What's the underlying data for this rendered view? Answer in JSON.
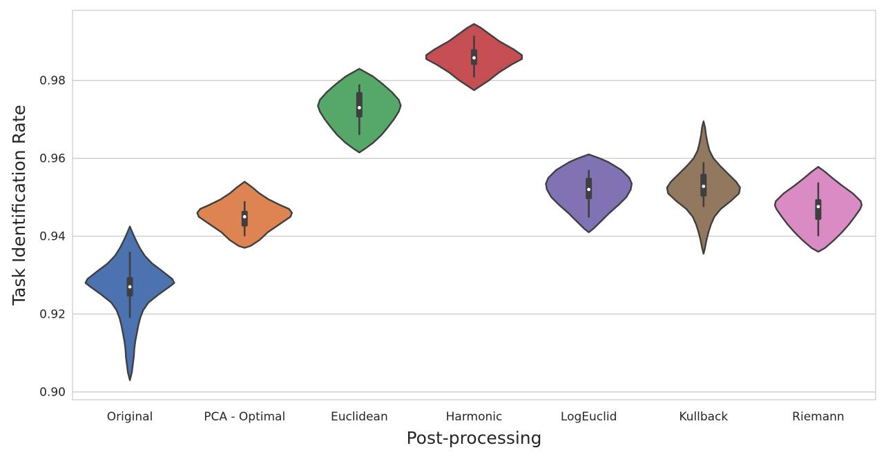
{
  "chart_data": {
    "type": "violin",
    "title": "",
    "xlabel": "Post-processing",
    "ylabel": "Task Identification Rate",
    "ylim": [
      0.898,
      0.998
    ],
    "yticks": [
      0.9,
      0.92,
      0.94,
      0.96,
      0.98
    ],
    "ytick_labels": [
      "0.90",
      "0.92",
      "0.94",
      "0.96",
      "0.98"
    ],
    "grid": true,
    "grid_axis": "y",
    "legend": "none",
    "categories": [
      "Original",
      "PCA - Optimal",
      "Euclidean",
      "Harmonic",
      "LogEuclid",
      "Kullback",
      "Riemann"
    ],
    "colors": [
      "#4c72b0",
      "#dd8452",
      "#55a868",
      "#c44e52",
      "#8172b3",
      "#937860",
      "#da8bc3"
    ],
    "series": [
      {
        "category": "Original",
        "min": 0.903,
        "max": 0.9425,
        "q1": 0.9245,
        "median": 0.927,
        "q3": 0.9295,
        "whisker_low": 0.919,
        "whisker_high": 0.936,
        "profile": [
          [
            0.903,
            0.0
          ],
          [
            0.905,
            0.04
          ],
          [
            0.907,
            0.06
          ],
          [
            0.909,
            0.08
          ],
          [
            0.911,
            0.09
          ],
          [
            0.913,
            0.11
          ],
          [
            0.915,
            0.14
          ],
          [
            0.917,
            0.17
          ],
          [
            0.919,
            0.21
          ],
          [
            0.921,
            0.27
          ],
          [
            0.923,
            0.38
          ],
          [
            0.925,
            0.58
          ],
          [
            0.927,
            0.8
          ],
          [
            0.928,
            0.9
          ],
          [
            0.929,
            0.86
          ],
          [
            0.931,
            0.66
          ],
          [
            0.933,
            0.45
          ],
          [
            0.935,
            0.3
          ],
          [
            0.937,
            0.2
          ],
          [
            0.939,
            0.12
          ],
          [
            0.941,
            0.05
          ],
          [
            0.9425,
            0.0
          ]
        ]
      },
      {
        "category": "PCA - Optimal",
        "min": 0.937,
        "max": 0.954,
        "q1": 0.9425,
        "median": 0.945,
        "q3": 0.9465,
        "whisker_low": 0.94,
        "whisker_high": 0.949,
        "profile": [
          [
            0.937,
            0.0
          ],
          [
            0.9375,
            0.12
          ],
          [
            0.939,
            0.3
          ],
          [
            0.941,
            0.47
          ],
          [
            0.943,
            0.7
          ],
          [
            0.945,
            0.93
          ],
          [
            0.946,
            0.96
          ],
          [
            0.947,
            0.9
          ],
          [
            0.948,
            0.72
          ],
          [
            0.9495,
            0.48
          ],
          [
            0.951,
            0.3
          ],
          [
            0.9525,
            0.16
          ],
          [
            0.954,
            0.0
          ]
        ]
      },
      {
        "category": "Euclidean",
        "min": 0.9615,
        "max": 0.983,
        "q1": 0.9705,
        "median": 0.973,
        "q3": 0.977,
        "whisker_low": 0.966,
        "whisker_high": 0.979,
        "profile": [
          [
            0.9615,
            0.0
          ],
          [
            0.9625,
            0.12
          ],
          [
            0.964,
            0.28
          ],
          [
            0.966,
            0.45
          ],
          [
            0.968,
            0.58
          ],
          [
            0.97,
            0.7
          ],
          [
            0.972,
            0.8
          ],
          [
            0.9735,
            0.84
          ],
          [
            0.975,
            0.8
          ],
          [
            0.977,
            0.66
          ],
          [
            0.979,
            0.48
          ],
          [
            0.981,
            0.28
          ],
          [
            0.982,
            0.14
          ],
          [
            0.983,
            0.0
          ]
        ]
      },
      {
        "category": "Harmonic",
        "min": 0.9775,
        "max": 0.9945,
        "q1": 0.984,
        "median": 0.9858,
        "q3": 0.988,
        "whisker_low": 0.9808,
        "whisker_high": 0.9915,
        "profile": [
          [
            0.9775,
            0.0
          ],
          [
            0.9785,
            0.12
          ],
          [
            0.98,
            0.3
          ],
          [
            0.982,
            0.5
          ],
          [
            0.984,
            0.75
          ],
          [
            0.9855,
            0.97
          ],
          [
            0.9865,
            0.97
          ],
          [
            0.988,
            0.8
          ],
          [
            0.99,
            0.52
          ],
          [
            0.992,
            0.3
          ],
          [
            0.9935,
            0.14
          ],
          [
            0.9945,
            0.0
          ]
        ]
      },
      {
        "category": "LogEuclid",
        "min": 0.941,
        "max": 0.961,
        "q1": 0.9495,
        "median": 0.952,
        "q3": 0.955,
        "whisker_low": 0.9448,
        "whisker_high": 0.957,
        "profile": [
          [
            0.941,
            0.0
          ],
          [
            0.942,
            0.1
          ],
          [
            0.944,
            0.26
          ],
          [
            0.946,
            0.42
          ],
          [
            0.948,
            0.6
          ],
          [
            0.95,
            0.76
          ],
          [
            0.952,
            0.85
          ],
          [
            0.9535,
            0.87
          ],
          [
            0.955,
            0.82
          ],
          [
            0.957,
            0.66
          ],
          [
            0.959,
            0.4
          ],
          [
            0.96,
            0.22
          ],
          [
            0.961,
            0.0
          ]
        ]
      },
      {
        "category": "Kullback",
        "min": 0.9355,
        "max": 0.9695,
        "q1": 0.9502,
        "median": 0.9528,
        "q3": 0.956,
        "whisker_low": 0.9475,
        "whisker_high": 0.959,
        "profile": [
          [
            0.9355,
            0.0
          ],
          [
            0.937,
            0.03
          ],
          [
            0.939,
            0.06
          ],
          [
            0.941,
            0.1
          ],
          [
            0.943,
            0.15
          ],
          [
            0.945,
            0.22
          ],
          [
            0.947,
            0.35
          ],
          [
            0.949,
            0.55
          ],
          [
            0.951,
            0.72
          ],
          [
            0.9525,
            0.74
          ],
          [
            0.954,
            0.66
          ],
          [
            0.956,
            0.5
          ],
          [
            0.958,
            0.34
          ],
          [
            0.96,
            0.2
          ],
          [
            0.962,
            0.12
          ],
          [
            0.964,
            0.08
          ],
          [
            0.966,
            0.05
          ],
          [
            0.968,
            0.03
          ],
          [
            0.9695,
            0.0
          ]
        ]
      },
      {
        "category": "Riemann",
        "min": 0.936,
        "max": 0.9578,
        "q1": 0.9442,
        "median": 0.9476,
        "q3": 0.9495,
        "whisker_low": 0.94,
        "whisker_high": 0.9538,
        "profile": [
          [
            0.936,
            0.0
          ],
          [
            0.937,
            0.14
          ],
          [
            0.939,
            0.32
          ],
          [
            0.941,
            0.48
          ],
          [
            0.943,
            0.62
          ],
          [
            0.945,
            0.74
          ],
          [
            0.947,
            0.85
          ],
          [
            0.948,
            0.88
          ],
          [
            0.949,
            0.86
          ],
          [
            0.951,
            0.7
          ],
          [
            0.953,
            0.48
          ],
          [
            0.955,
            0.28
          ],
          [
            0.9565,
            0.14
          ],
          [
            0.9578,
            0.0
          ]
        ]
      }
    ]
  }
}
